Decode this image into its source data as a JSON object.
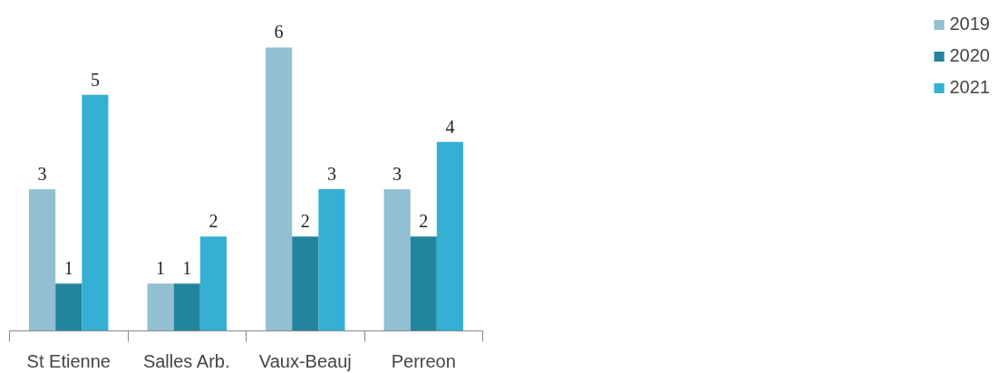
{
  "chart_data": {
    "type": "bar",
    "categories": [
      "St Etienne",
      "Salles Arb.",
      "Vaux-Beauj",
      "Perreon"
    ],
    "series": [
      {
        "name": "2019",
        "color": "#92c0d2",
        "values": [
          3,
          1,
          6,
          3
        ]
      },
      {
        "name": "2020",
        "color": "#23849e",
        "values": [
          1,
          1,
          2,
          2
        ]
      },
      {
        "name": "2021",
        "color": "#35afd3",
        "values": [
          5,
          2,
          3,
          4
        ]
      }
    ],
    "data_labels": true,
    "legend": "right",
    "grid": false,
    "tick_labels": "x"
  }
}
